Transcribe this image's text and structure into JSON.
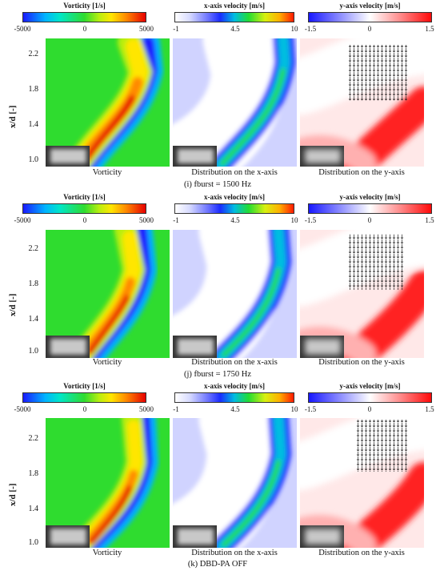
{
  "colorbars": {
    "vorticity": {
      "title": "Vorticity [1/s]",
      "ticks": [
        "-5000",
        "0",
        "5000"
      ]
    },
    "xvel": {
      "title": "x-axis velocity [m/s]",
      "ticks": [
        "-1",
        "4.5",
        "10"
      ]
    },
    "yvel": {
      "title": "y-axis velocity [m/s]",
      "ticks": [
        "-1.5",
        "0",
        "1.5"
      ]
    }
  },
  "axis": {
    "ylabel": "x/d [-]",
    "ticks": [
      "2.2",
      "1.8",
      "1.4",
      "1.0"
    ]
  },
  "captions": {
    "vorticity": "Vorticity",
    "xdist": "Distribution on the x-axis",
    "ydist": "Distribution on the y-axis"
  },
  "rows": [
    {
      "id": "i",
      "label": "(i) fburst = 1500 Hz"
    },
    {
      "id": "j",
      "label": "(j) fburst = 1750 Hz"
    },
    {
      "id": "k",
      "label": "(k) DBD-PA OFF"
    }
  ]
}
